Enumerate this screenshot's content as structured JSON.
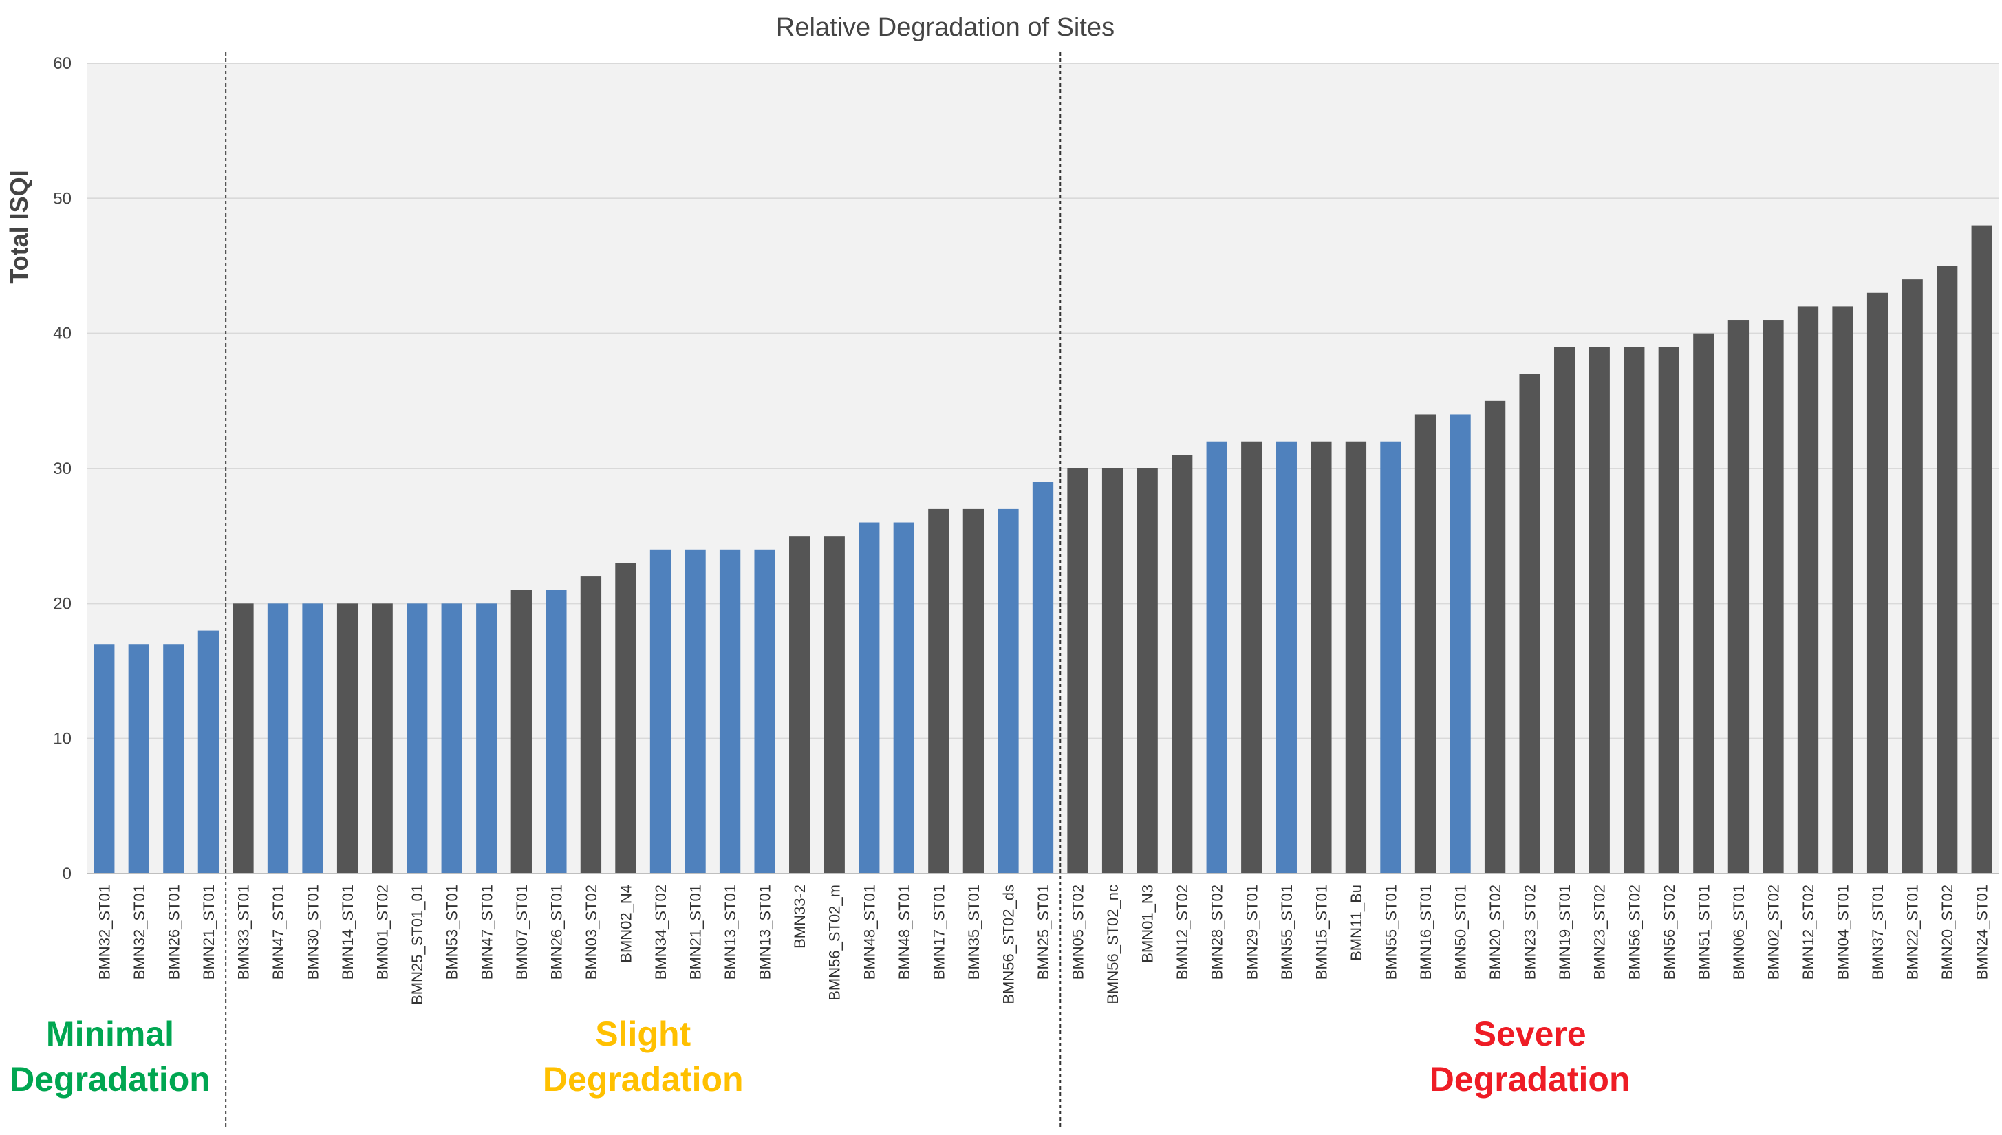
{
  "chart_data": {
    "type": "bar",
    "title": "Relative Degradation of Sites",
    "xlabel": "",
    "ylabel": "Total ISQI",
    "ylim": [
      0,
      60
    ],
    "yticks": [
      0,
      10,
      20,
      30,
      40,
      50,
      60
    ],
    "grid": true,
    "colors": {
      "blue": "#4f81bd",
      "gray": "#555555",
      "background": "#f2f2f2",
      "grid": "#d9d9d9"
    },
    "bars": [
      {
        "label": "BMN32_ST01",
        "value": 17,
        "color": "blue"
      },
      {
        "label": "BMN32_ST01",
        "value": 17,
        "color": "blue"
      },
      {
        "label": "BMN26_ST01",
        "value": 17,
        "color": "blue"
      },
      {
        "label": "BMN21_ST01",
        "value": 18,
        "color": "blue"
      },
      {
        "label": "BMN33_ST01",
        "value": 20,
        "color": "gray"
      },
      {
        "label": "BMN47_ST01",
        "value": 20,
        "color": "blue"
      },
      {
        "label": "BMN30_ST01",
        "value": 20,
        "color": "blue"
      },
      {
        "label": "BMN14_ST01",
        "value": 20,
        "color": "gray"
      },
      {
        "label": "BMN01_ST02",
        "value": 20,
        "color": "gray"
      },
      {
        "label": "BMN25_ST01_01",
        "value": 20,
        "color": "blue"
      },
      {
        "label": "BMN53_ST01",
        "value": 20,
        "color": "blue"
      },
      {
        "label": "BMN47_ST01",
        "value": 20,
        "color": "blue"
      },
      {
        "label": "BMN07_ST01",
        "value": 21,
        "color": "gray"
      },
      {
        "label": "BMN26_ST01",
        "value": 21,
        "color": "blue"
      },
      {
        "label": "BMN03_ST02",
        "value": 22,
        "color": "gray"
      },
      {
        "label": "BMN02_N4",
        "value": 23,
        "color": "gray"
      },
      {
        "label": "BMN34_ST02",
        "value": 24,
        "color": "blue"
      },
      {
        "label": "BMN21_ST01",
        "value": 24,
        "color": "blue"
      },
      {
        "label": "BMN13_ST01",
        "value": 24,
        "color": "blue"
      },
      {
        "label": "BMN13_ST01",
        "value": 24,
        "color": "blue"
      },
      {
        "label": "BMN33-2",
        "value": 25,
        "color": "gray"
      },
      {
        "label": "BMN56_ST02_m",
        "value": 25,
        "color": "gray"
      },
      {
        "label": "BMN48_ST01",
        "value": 26,
        "color": "blue"
      },
      {
        "label": "BMN48_ST01",
        "value": 26,
        "color": "blue"
      },
      {
        "label": "BMN17_ST01",
        "value": 27,
        "color": "gray"
      },
      {
        "label": "BMN35_ST01",
        "value": 27,
        "color": "gray"
      },
      {
        "label": "BMN56_ST02_ds",
        "value": 27,
        "color": "blue"
      },
      {
        "label": "BMN25_ST01",
        "value": 29,
        "color": "blue"
      },
      {
        "label": "BMN05_ST02",
        "value": 30,
        "color": "gray"
      },
      {
        "label": "BMN56_ST02_nc",
        "value": 30,
        "color": "gray"
      },
      {
        "label": "BMN01_N3",
        "value": 30,
        "color": "gray"
      },
      {
        "label": "BMN12_ST02",
        "value": 31,
        "color": "gray"
      },
      {
        "label": "BMN28_ST02",
        "value": 32,
        "color": "blue"
      },
      {
        "label": "BMN29_ST01",
        "value": 32,
        "color": "gray"
      },
      {
        "label": "BMN55_ST01",
        "value": 32,
        "color": "blue"
      },
      {
        "label": "BMN15_ST01",
        "value": 32,
        "color": "gray"
      },
      {
        "label": "BMN11_Bu",
        "value": 32,
        "color": "gray"
      },
      {
        "label": "BMN55_ST01",
        "value": 32,
        "color": "blue"
      },
      {
        "label": "BMN16_ST01",
        "value": 34,
        "color": "gray"
      },
      {
        "label": "BMN50_ST01",
        "value": 34,
        "color": "blue"
      },
      {
        "label": "BMN20_ST02",
        "value": 35,
        "color": "gray"
      },
      {
        "label": "BMN23_ST02",
        "value": 37,
        "color": "gray"
      },
      {
        "label": "BMN19_ST01",
        "value": 39,
        "color": "gray"
      },
      {
        "label": "BMN23_ST02",
        "value": 39,
        "color": "gray"
      },
      {
        "label": "BMN56_ST02",
        "value": 39,
        "color": "gray"
      },
      {
        "label": "BMN56_ST02",
        "value": 39,
        "color": "gray"
      },
      {
        "label": "BMN51_ST01",
        "value": 40,
        "color": "gray"
      },
      {
        "label": "BMN06_ST01",
        "value": 41,
        "color": "gray"
      },
      {
        "label": "BMN02_ST02",
        "value": 41,
        "color": "gray"
      },
      {
        "label": "BMN12_ST02",
        "value": 42,
        "color": "gray"
      },
      {
        "label": "BMN04_ST01",
        "value": 42,
        "color": "gray"
      },
      {
        "label": "BMN37_ST01",
        "value": 43,
        "color": "gray"
      },
      {
        "label": "BMN22_ST01",
        "value": 44,
        "color": "gray"
      },
      {
        "label": "BMN20_ST02",
        "value": 45,
        "color": "gray"
      },
      {
        "label": "BMN24_ST01",
        "value": 48,
        "color": "gray"
      }
    ],
    "dividers_after_index": [
      3,
      27
    ],
    "zones": [
      {
        "line1": "Minimal",
        "line2": "Degradation",
        "color": "#00a651",
        "from": 0,
        "to": 3
      },
      {
        "line1": "Slight",
        "line2": "Degradation",
        "color": "#ffc000",
        "from": 4,
        "to": 27
      },
      {
        "line1": "Severe",
        "line2": "Degradation",
        "color": "#ee1c25",
        "from": 28,
        "to": 54
      }
    ]
  }
}
